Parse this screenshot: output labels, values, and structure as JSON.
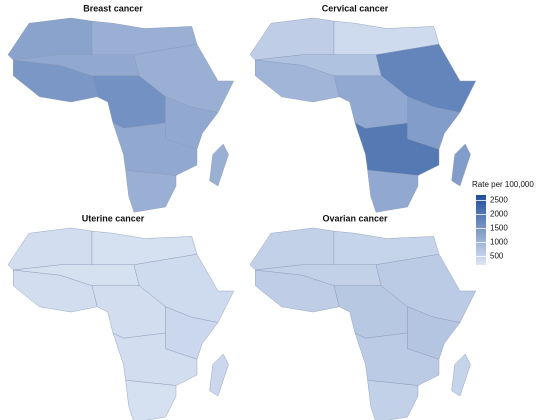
{
  "panels": [
    {
      "title": "Breast cancer",
      "values": [
        1300,
        1100,
        1500,
        1200,
        1100,
        1600,
        1200,
        1200,
        1100,
        1100
      ]
    },
    {
      "title": "Cervical cancer",
      "values": [
        600,
        400,
        1000,
        800,
        1800,
        1200,
        1400,
        2000,
        1200,
        1400
      ]
    },
    {
      "title": "Uterine cancer",
      "values": [
        350,
        300,
        350,
        300,
        400,
        350,
        450,
        350,
        300,
        450
      ]
    },
    {
      "title": "Ovarian cancer",
      "values": [
        550,
        500,
        600,
        550,
        650,
        700,
        750,
        650,
        550,
        500
      ]
    }
  ],
  "legend": {
    "title": "Rate per 100,000",
    "lim": [
      200,
      2700
    ],
    "ticks": [
      500,
      1000,
      1500,
      2000,
      2500
    ]
  }
}
